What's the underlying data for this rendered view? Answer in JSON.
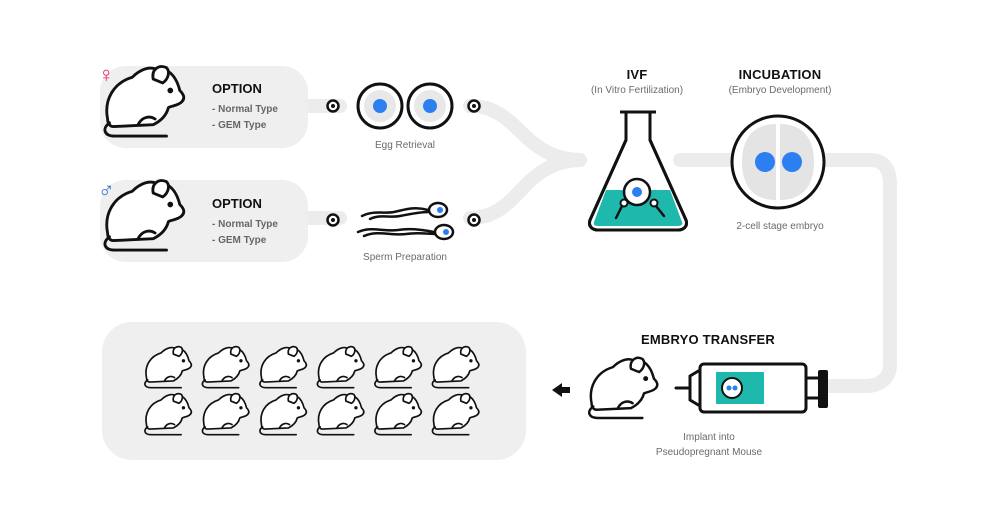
{
  "colors": {
    "female": "#e8246b",
    "male": "#2a6fd6",
    "nucleus": "#2b7ff0",
    "teal": "#1fb8ad",
    "path": "#ececec",
    "panel": "#efefef"
  },
  "female_option": {
    "symbol": "♀",
    "title": "OPTION",
    "items": [
      "- Normal Type",
      "- GEM Type"
    ]
  },
  "male_option": {
    "symbol": "♂",
    "title": "OPTION",
    "items": [
      "- Normal Type",
      "- GEM Type"
    ]
  },
  "egg_retrieval": {
    "label": "Egg Retrieval"
  },
  "sperm_preparation": {
    "label": "Sperm Preparation"
  },
  "ivf": {
    "title": "IVF",
    "subtitle": "(In Vitro Fertilization)"
  },
  "incubation": {
    "title": "INCUBATION",
    "subtitle": "(Embryo Development)",
    "caption": "2-cell stage embryo"
  },
  "embryo_transfer": {
    "title": "EMBRYO TRANSFER",
    "caption_line1": "Implant into",
    "caption_line2": "Pseudopregnant Mouse"
  },
  "offspring": {
    "rows": 2,
    "per_row": 6
  }
}
